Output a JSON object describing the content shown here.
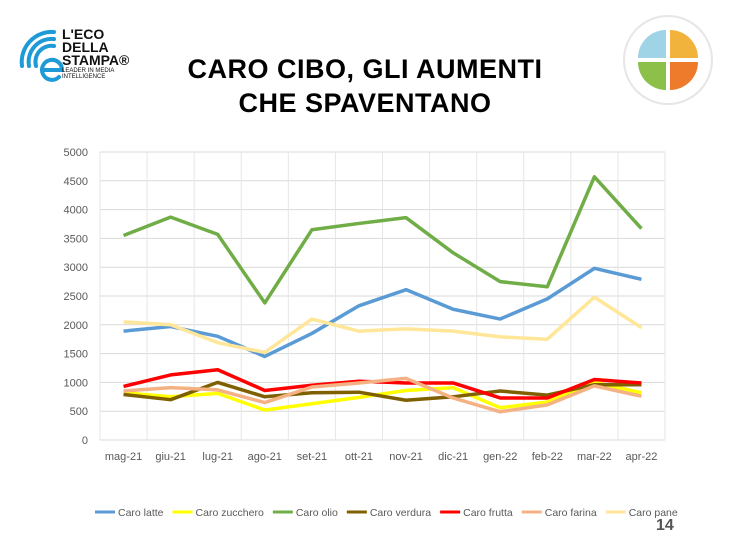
{
  "header": {
    "logo_text": [
      "L'ECO",
      "DELLA",
      "STAMPA®"
    ],
    "logo_tagline": "LEADER IN MEDIA INTELLIGENCE",
    "title_line1": "CARO CIBO, GLI AUMENTI",
    "title_line2": "CHE SPAVENTANO"
  },
  "page_number": "14",
  "chart_data": {
    "type": "line",
    "title": "",
    "xlabel": "",
    "ylabel": "",
    "ylim": [
      0,
      5000
    ],
    "yticks": [
      "0",
      "500",
      "1000",
      "1500",
      "2000",
      "2500",
      "3000",
      "3500",
      "4000",
      "4500",
      "5000"
    ],
    "grid": true,
    "legend_position": "bottom",
    "categories": [
      "mag-21",
      "giu-21",
      "lug-21",
      "ago-21",
      "set-21",
      "ott-21",
      "nov-21",
      "dic-21",
      "gen-22",
      "feb-22",
      "mar-22",
      "apr-22"
    ],
    "series": [
      {
        "name": "Caro latte",
        "color": "#5b9bd5",
        "values": [
          1890,
          1970,
          1800,
          1450,
          1850,
          2330,
          2610,
          2270,
          2100,
          2450,
          2980,
          2790
        ]
      },
      {
        "name": "Caro zucchero",
        "color": "#ffff00",
        "values": [
          820,
          750,
          810,
          520,
          630,
          740,
          860,
          910,
          560,
          660,
          1000,
          820
        ]
      },
      {
        "name": "Caro olio",
        "color": "#70ad47",
        "values": [
          3550,
          3870,
          3570,
          2380,
          3650,
          3760,
          3860,
          3250,
          2750,
          2660,
          4570,
          3670
        ]
      },
      {
        "name": "Caro verdura",
        "color": "#7f6000",
        "values": [
          790,
          700,
          1000,
          750,
          820,
          830,
          690,
          750,
          850,
          780,
          960,
          960
        ]
      },
      {
        "name": "Caro frutta",
        "color": "#ff0000",
        "values": [
          930,
          1130,
          1220,
          860,
          950,
          1020,
          990,
          990,
          730,
          730,
          1050,
          990
        ]
      },
      {
        "name": "Caro farina",
        "color": "#f4b183",
        "values": [
          850,
          910,
          870,
          650,
          920,
          990,
          1070,
          730,
          490,
          610,
          940,
          760
        ]
      },
      {
        "name": "Caro pane",
        "color": "#ffe699",
        "values": [
          2050,
          2000,
          1690,
          1520,
          2100,
          1890,
          1930,
          1890,
          1790,
          1750,
          2480,
          1950
        ]
      }
    ]
  }
}
